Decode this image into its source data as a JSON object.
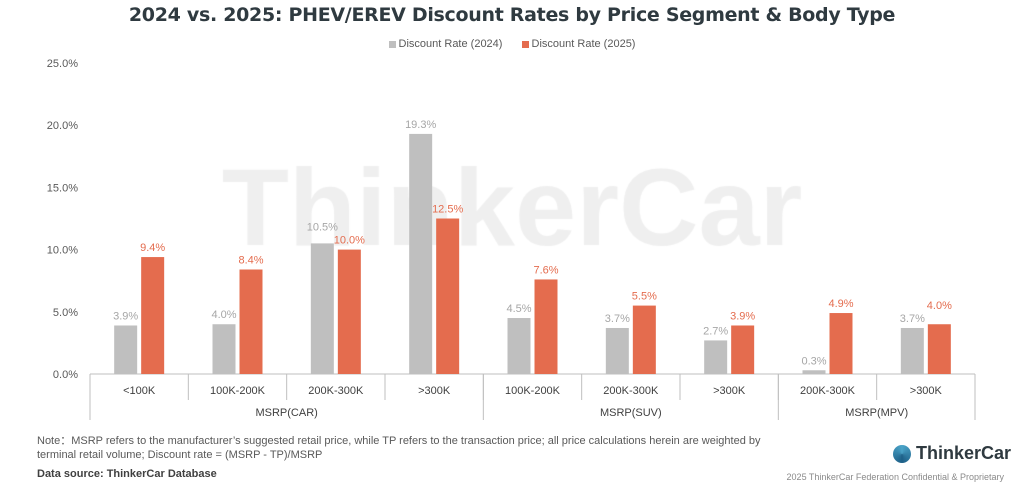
{
  "chart_data": {
    "type": "bar",
    "title": "2024 vs. 2025: PHEV/EREV Discount Rates by Price Segment & Body Type",
    "categories": [
      "<100K",
      "100K-200K",
      "200K-300K",
      ">300K",
      "100K-200K",
      "200K-300K",
      ">300K",
      "200K-300K",
      ">300K"
    ],
    "groups": [
      {
        "label": "MSRP(CAR)",
        "count": 4
      },
      {
        "label": "MSRP(SUV)",
        "count": 3
      },
      {
        "label": "MSRP(MPV)",
        "count": 2
      }
    ],
    "series": [
      {
        "name": "Discount Rate (2024)",
        "color": "#bfbfbf",
        "label_color": "#a6a6a6",
        "values": [
          3.9,
          4.0,
          10.5,
          19.3,
          4.5,
          3.7,
          2.7,
          0.3,
          3.7
        ]
      },
      {
        "name": "Discount Rate (2025)",
        "color": "#e46c4e",
        "label_color": "#e46c4e",
        "values": [
          9.4,
          8.4,
          10.0,
          12.5,
          7.6,
          5.5,
          3.9,
          4.9,
          4.0
        ]
      }
    ],
    "ylim": [
      0,
      25
    ],
    "yticks": [
      "0.0%",
      "5.0%",
      "10.0%",
      "15.0%",
      "20.0%",
      "25.0%"
    ],
    "legend": "top-center",
    "grid": false
  },
  "watermark": "ThinkerCar",
  "note": "Note：MSRP refers to the manufacturer’s suggested retail price, while TP refers to the transaction price; all price calculations herein are weighted by terminal retail volume; Discount rate = (MSRP - TP)/MSRP",
  "source": "Data source: ThinkerCar Database",
  "logo": "ThinkerCar",
  "copyright": "2025 ThinkerCar Federation Confidential & Proprietary"
}
